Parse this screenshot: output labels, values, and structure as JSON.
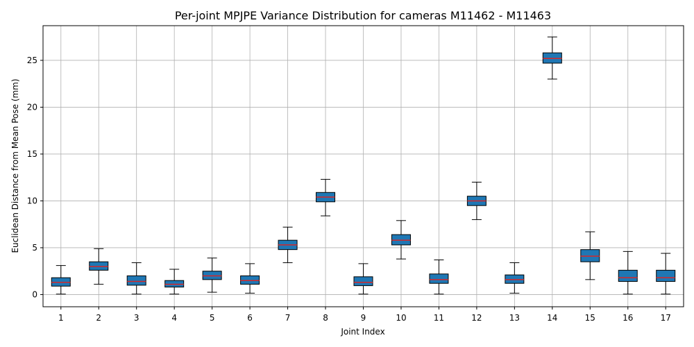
{
  "chart_data": {
    "type": "boxplot",
    "title": "Per-joint MPJPE Variance Distribution for cameras M11462 - M11463",
    "xlabel": "Joint Index",
    "ylabel": "Euclidean Distance from Mean Pose (mm)",
    "ylim": [
      -1.3,
      28.7
    ],
    "yticks": [
      0,
      5,
      10,
      15,
      20,
      25
    ],
    "grid": true,
    "colors": {
      "box_fill": "#1f77b4",
      "median": "#d62728",
      "edge": "#000000",
      "grid": "#b0b0b0"
    },
    "categories": [
      "1",
      "2",
      "3",
      "4",
      "5",
      "6",
      "7",
      "8",
      "9",
      "10",
      "11",
      "12",
      "13",
      "14",
      "15",
      "16",
      "17"
    ],
    "boxes": [
      {
        "whislo": 0.05,
        "q1": 0.9,
        "med": 1.3,
        "q3": 1.8,
        "whishi": 3.1
      },
      {
        "whislo": 1.1,
        "q1": 2.6,
        "med": 3.0,
        "q3": 3.5,
        "whishi": 4.9
      },
      {
        "whislo": 0.05,
        "q1": 1.0,
        "med": 1.4,
        "q3": 2.0,
        "whishi": 3.4
      },
      {
        "whislo": 0.05,
        "q1": 0.8,
        "med": 1.1,
        "q3": 1.5,
        "whishi": 2.7
      },
      {
        "whislo": 0.25,
        "q1": 1.6,
        "med": 2.0,
        "q3": 2.5,
        "whishi": 3.9
      },
      {
        "whislo": 0.15,
        "q1": 1.1,
        "med": 1.5,
        "q3": 2.0,
        "whishi": 3.3
      },
      {
        "whislo": 3.4,
        "q1": 4.8,
        "med": 5.3,
        "q3": 5.8,
        "whishi": 7.2
      },
      {
        "whislo": 8.4,
        "q1": 9.9,
        "med": 10.4,
        "q3": 10.9,
        "whishi": 12.3
      },
      {
        "whislo": 0.05,
        "q1": 0.95,
        "med": 1.3,
        "q3": 1.9,
        "whishi": 3.3
      },
      {
        "whislo": 3.8,
        "q1": 5.3,
        "med": 5.8,
        "q3": 6.4,
        "whishi": 7.9
      },
      {
        "whislo": 0.05,
        "q1": 1.2,
        "med": 1.6,
        "q3": 2.2,
        "whishi": 3.7
      },
      {
        "whislo": 8.0,
        "q1": 9.5,
        "med": 10.0,
        "q3": 10.5,
        "whishi": 12.0
      },
      {
        "whislo": 0.15,
        "q1": 1.2,
        "med": 1.6,
        "q3": 2.1,
        "whishi": 3.4
      },
      {
        "whislo": 23.0,
        "q1": 24.7,
        "med": 25.2,
        "q3": 25.8,
        "whishi": 27.5
      },
      {
        "whislo": 1.6,
        "q1": 3.5,
        "med": 4.1,
        "q3": 4.8,
        "whishi": 6.7
      },
      {
        "whislo": 0.05,
        "q1": 1.4,
        "med": 1.8,
        "q3": 2.6,
        "whishi": 4.6
      },
      {
        "whislo": 0.05,
        "q1": 1.4,
        "med": 1.8,
        "q3": 2.6,
        "whishi": 4.4
      }
    ]
  }
}
